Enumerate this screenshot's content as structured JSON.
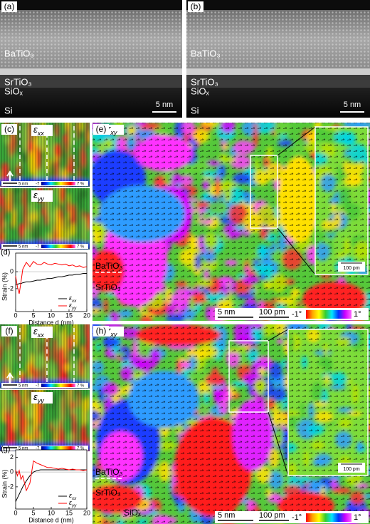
{
  "panels": {
    "a": {
      "label": "(a)",
      "layers": [
        "BaTiO₃",
        "SrTiO₃",
        "SiOₓ",
        "Si"
      ],
      "scale_bar": "5 nm"
    },
    "b": {
      "label": "(b)",
      "layers": [
        "BaTiO₃",
        "SrTiO₃",
        "SiOₓ",
        "Si"
      ],
      "scale_bar": "5 nm"
    },
    "c": {
      "label": "(c)",
      "maps": [
        {
          "symbol": "ε",
          "sub": "xx"
        },
        {
          "symbol": "ε",
          "sub": "yy"
        }
      ],
      "scale_bar": "5 nm",
      "colorbar": [
        "-7",
        "7 %"
      ]
    },
    "e": {
      "label": "(e)",
      "map": {
        "symbol": "r",
        "sub": "xy"
      },
      "layers": [
        "BaTiO₃",
        "SrTiO₃"
      ],
      "scale_bar": "5 nm",
      "vector_scale": "100 pm",
      "colorbar": [
        "-1°",
        "1°"
      ],
      "inset_scale": "100 pm"
    },
    "f": {
      "label": "(f)",
      "maps": [
        {
          "symbol": "ε",
          "sub": "xx"
        },
        {
          "symbol": "ε",
          "sub": "yy"
        }
      ],
      "scale_bar": "5 nm",
      "colorbar": [
        "-7",
        "7 %"
      ]
    },
    "h": {
      "label": "(h)",
      "map": {
        "symbol": "r",
        "sub": "xy"
      },
      "layers": [
        "BaTiO₃",
        "SrTiO₃",
        "SiOₓ"
      ],
      "scale_bar": "5 nm",
      "vector_scale": "100 pm",
      "colorbar": [
        "-1°",
        "1°"
      ],
      "inset_scale": "100 pm"
    }
  },
  "chart_data": [
    {
      "type": "line",
      "label": "(d)",
      "x_label": "Distance d (nm)",
      "y_label": "Strain (%)",
      "x": [
        0,
        0.5,
        1,
        1.5,
        2,
        3,
        4,
        5,
        6,
        7,
        8,
        9,
        10,
        11,
        12,
        13,
        14,
        15,
        16,
        17,
        18,
        19,
        20
      ],
      "xlim": [
        0,
        20
      ],
      "xticks": [
        0,
        5,
        10,
        15,
        20
      ],
      "ylim": [
        -4.7,
        2.2
      ],
      "yticks": [
        -2,
        0
      ],
      "legend": "lower right",
      "series": [
        {
          "name": {
            "symbol": "ε",
            "sub": "xx"
          },
          "color": "#000000",
          "values": [
            -1.5,
            -1.5,
            -1.4,
            -1.4,
            -1.3,
            -1.2,
            -1.2,
            -1.1,
            -1,
            -1,
            -0.9,
            -0.8,
            -0.8,
            -0.7,
            -0.6,
            -0.6,
            -0.5,
            -0.4,
            -0.4,
            -0.3,
            -0.3,
            -0.2,
            -0.2
          ]
        },
        {
          "name": {
            "symbol": "ε",
            "sub": "yy"
          },
          "color": "#ff0000",
          "values": [
            -0.5,
            -1.8,
            -2.6,
            -1.2,
            0.3,
            1.1,
            0.6,
            1.2,
            0.9,
            0.8,
            1.1,
            0.9,
            0.8,
            1,
            0.9,
            0.8,
            0.9,
            0.7,
            0.8,
            0.6,
            0.7,
            0.5,
            0.6
          ]
        }
      ]
    },
    {
      "type": "line",
      "label": "(g)",
      "x_label": "Distance d (nm)",
      "y_label": "Strain (%)",
      "x": [
        0,
        0.5,
        1,
        1.5,
        2,
        3,
        4,
        5,
        6,
        7,
        8,
        9,
        10,
        11,
        12,
        13,
        14,
        15,
        16,
        17,
        18,
        19,
        20
      ],
      "xlim": [
        0,
        20
      ],
      "xticks": [
        0,
        5,
        10,
        15,
        20
      ],
      "ylim": [
        -5,
        3
      ],
      "yticks": [
        -2,
        0,
        2
      ],
      "legend": "lower right",
      "series": [
        {
          "name": {
            "symbol": "ε",
            "sub": "xx"
          },
          "color": "#000000",
          "values": [
            -4,
            -3.5,
            -3,
            -2.5,
            -2,
            -1.2,
            -0.5,
            0,
            0.2,
            0.3,
            0.3,
            0.3,
            0.3,
            0.3,
            0.3,
            0.3,
            0.3,
            0.3,
            0.3,
            0.3,
            0.3,
            0.3,
            0.3
          ]
        },
        {
          "name": {
            "symbol": "ε",
            "sub": "yy"
          },
          "color": "#ff0000",
          "values": [
            0.3,
            -0.5,
            0.2,
            -1,
            -0.5,
            -2.5,
            -1.5,
            1.5,
            1.2,
            1,
            0.8,
            0.6,
            0.6,
            0.5,
            0.4,
            0.5,
            0.4,
            0.3,
            0.4,
            0.3,
            0.3,
            0.2,
            0.3
          ]
        }
      ]
    }
  ]
}
